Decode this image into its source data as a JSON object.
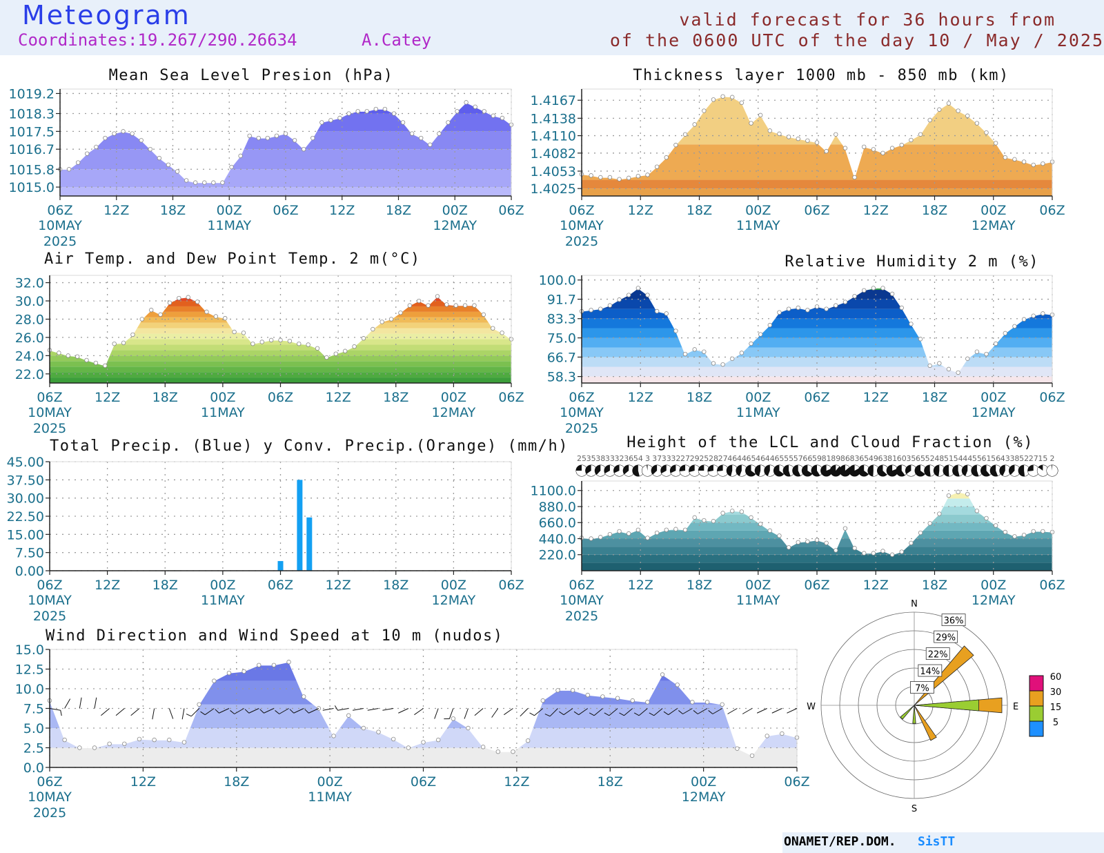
{
  "header": {
    "title": "Meteogram",
    "coordinates": "Coordinates:19.267/290.26634",
    "station": "A.Catey",
    "valid_line1": "valid forecast for 36 hours from",
    "valid_line2": "of the 0600 UTC of the day 10 / May / 2025"
  },
  "footer": {
    "org": "ONAMET/REP.DOM.",
    "brand": "SisTT"
  },
  "time_axis": {
    "ticks": [
      "06Z",
      "12Z",
      "18Z",
      "00Z",
      "06Z",
      "12Z",
      "18Z",
      "00Z",
      "06Z"
    ],
    "dates": [
      {
        "tick": 0,
        "label": "10MAY"
      },
      {
        "tick": 3,
        "label": "11MAY"
      },
      {
        "tick": 7,
        "label": "12MAY"
      }
    ],
    "year": "2025"
  },
  "chart_data": [
    {
      "id": "mslp",
      "type": "area",
      "title": "Mean Sea Level Presion (hPa)",
      "yticks": [
        "1019.2",
        "1018.3",
        "1017.5",
        "1016.7",
        "1015.8",
        "1015.0"
      ],
      "ylim": [
        1014.6,
        1019.4
      ],
      "hours": [
        0,
        48
      ],
      "bands": [
        1015.0,
        1015.8,
        1016.7,
        1017.5,
        1018.3
      ],
      "colors": [
        "#b9b9fb",
        "#a7a7f8",
        "#9797f5",
        "#8888f3",
        "#7272f0",
        "#5e5eec"
      ],
      "values": [
        1015.8,
        1015.8,
        1016.1,
        1016.5,
        1016.8,
        1017.2,
        1017.4,
        1017.5,
        1017.4,
        1017.1,
        1016.7,
        1016.3,
        1016.0,
        1015.7,
        1015.3,
        1015.2,
        1015.2,
        1015.2,
        1015.2,
        1015.9,
        1016.4,
        1017.3,
        1017.2,
        1017.2,
        1017.3,
        1017.4,
        1017.1,
        1016.7,
        1017.2,
        1017.9,
        1018.0,
        1018.1,
        1018.3,
        1018.4,
        1018.4,
        1018.5,
        1018.5,
        1018.3,
        1017.9,
        1017.4,
        1017.2,
        1016.9,
        1017.4,
        1017.9,
        1018.4,
        1018.8,
        1018.6,
        1018.4,
        1018.2,
        1018.1,
        1017.8
      ]
    },
    {
      "id": "thickness",
      "type": "area",
      "title": "Thickness layer 1000 mb - 850 mb (km)",
      "yticks": [
        "1.4167",
        "1.4138",
        "1.4110",
        "1.4082",
        "1.4053",
        "1.4025"
      ],
      "ylim": [
        1.4013,
        1.4185
      ],
      "hours": [
        0,
        48
      ],
      "bands": [
        1.4025,
        1.4039,
        1.4096
      ],
      "colors": [
        "#e8a048",
        "#e5883c",
        "#eeaa52",
        "#f2cf82"
      ],
      "values": [
        1.4048,
        1.4046,
        1.4043,
        1.4043,
        1.404,
        1.4042,
        1.4045,
        1.4047,
        1.406,
        1.4075,
        1.4095,
        1.4112,
        1.4128,
        1.415,
        1.4168,
        1.4173,
        1.4172,
        1.4163,
        1.413,
        1.4143,
        1.4118,
        1.4113,
        1.4108,
        1.4105,
        1.4102,
        1.4099,
        1.4085,
        1.4112,
        1.409,
        1.4043,
        1.4092,
        1.4088,
        1.4082,
        1.409,
        1.4095,
        1.4103,
        1.4112,
        1.4135,
        1.4152,
        1.4162,
        1.415,
        1.4142,
        1.413,
        1.4115,
        1.4098,
        1.4075,
        1.4072,
        1.4068,
        1.4063,
        1.4065,
        1.4068
      ]
    },
    {
      "id": "temp",
      "type": "area",
      "title": "Air Temp. and Dew Point Temp. 2 m(°C)",
      "yticks": [
        "32.0",
        "30.0",
        "28.0",
        "26.0",
        "24.0",
        "22.0"
      ],
      "ylim": [
        21.0,
        32.8
      ],
      "hours": [
        0,
        48
      ],
      "bands": [
        21.6,
        22.2,
        22.8,
        23.4,
        24.0,
        24.6,
        25.2,
        25.8,
        26.4,
        27.0,
        27.6,
        28.2,
        28.8,
        29.4,
        30.0
      ],
      "colors": [
        "#3c9e3a",
        "#4faa40",
        "#64b548",
        "#7bc050",
        "#93ca5a",
        "#abd466",
        "#c2dd76",
        "#d8e68a",
        "#eaeea4",
        "#f3e6a0",
        "#f2d27a",
        "#f0bb58",
        "#ee9f3c",
        "#e8802a",
        "#e2601e",
        "#e04828"
      ],
      "values": [
        24.6,
        24.3,
        24.0,
        23.9,
        23.5,
        23.2,
        22.9,
        25.3,
        25.4,
        26.3,
        28.0,
        29.0,
        28.5,
        29.8,
        30.3,
        30.4,
        29.9,
        28.8,
        28.3,
        28.1,
        26.6,
        26.5,
        25.3,
        25.5,
        25.7,
        25.7,
        25.6,
        25.3,
        25.2,
        24.8,
        23.8,
        24.2,
        24.5,
        25.0,
        25.9,
        26.9,
        27.7,
        28.0,
        28.7,
        29.5,
        30.0,
        29.5,
        30.5,
        29.6,
        29.5,
        29.5,
        29.5,
        28.5,
        27.0,
        26.5,
        25.8
      ]
    },
    {
      "id": "rh",
      "type": "area",
      "title": "Relative Humidity 2 m (%)",
      "yticks": [
        "100.0",
        "91.7",
        "83.3",
        "75.0",
        "66.7",
        "58.3"
      ],
      "ylim": [
        55.5,
        102.0
      ],
      "hours": [
        0,
        48
      ],
      "bands": [
        58.3,
        62.5,
        66.7,
        70.8,
        75.0,
        79.2,
        83.3,
        87.5,
        91.7,
        95.8
      ],
      "colors": [
        "#f6e6ea",
        "#e0e6f6",
        "#bcdcf6",
        "#88c8f6",
        "#52aef2",
        "#2c96ea",
        "#1478dc",
        "#0c5ec8",
        "#0a48ac",
        "#0a3890",
        "#1a9a26"
      ],
      "values": [
        86.5,
        87.0,
        87.5,
        89.0,
        91.5,
        93.5,
        96.5,
        93.5,
        86.5,
        85.5,
        78.0,
        68.0,
        70.0,
        69.0,
        64.0,
        63.5,
        66.0,
        68.5,
        72.5,
        76.5,
        80.5,
        86.0,
        87.5,
        88.0,
        87.0,
        88.5,
        87.5,
        89.0,
        90.5,
        93.0,
        95.5,
        96.5,
        96.5,
        94.0,
        88.0,
        81.0,
        74.5,
        63.0,
        64.0,
        61.5,
        60.0,
        66.0,
        69.0,
        68.0,
        72.5,
        77.0,
        80.0,
        83.0,
        84.5,
        85.5,
        85.0
      ]
    },
    {
      "id": "precip",
      "type": "bar",
      "title": "Total Precip. (Blue) y Conv. Precip.(Orange) (mm/h)",
      "yticks": [
        "45.00",
        "37.50",
        "30.00",
        "22.50",
        "15.00",
        "7.50",
        "0.00"
      ],
      "ylim": [
        0,
        45
      ],
      "hours": [
        0,
        48
      ],
      "bars": [
        {
          "hour": 24,
          "value": 4.0
        },
        {
          "hour": 26,
          "value": 37.5
        },
        {
          "hour": 27,
          "value": 22.0
        }
      ]
    },
    {
      "id": "lcl",
      "type": "area",
      "title": "Height of the LCL and Cloud Fraction (%)",
      "yticks": [
        "1100.0",
        "880.0",
        "660.0",
        "440.0",
        "220.0"
      ],
      "ylim": [
        0,
        1230
      ],
      "hours": [
        0,
        48
      ],
      "bands": [
        110,
        220,
        330,
        440,
        550,
        660,
        770,
        880,
        990
      ],
      "colors": [
        "#1e6070",
        "#2a7080",
        "#3a8090",
        "#4d90a0",
        "#5ea6b2",
        "#72b8c2",
        "#8ccace",
        "#a4dade",
        "#c4ecec",
        "#f6f0b2"
      ],
      "values": [
        450,
        440,
        460,
        500,
        540,
        510,
        560,
        450,
        520,
        560,
        570,
        560,
        730,
        690,
        680,
        790,
        820,
        810,
        730,
        640,
        550,
        480,
        320,
        390,
        400,
        420,
        380,
        280,
        580,
        310,
        240,
        240,
        270,
        220,
        260,
        380,
        520,
        650,
        780,
        1030,
        1080,
        1050,
        820,
        720,
        620,
        530,
        470,
        490,
        540,
        540,
        530
      ],
      "cloud_fraction": [
        "25",
        "35",
        "38",
        "33",
        "32",
        "36",
        "54",
        "3",
        "37",
        "33",
        "32",
        "27",
        "29",
        "25",
        "28",
        "27",
        "46",
        "44",
        "65",
        "46",
        "44",
        "65",
        "55",
        "57",
        "66",
        "59",
        "81",
        "89",
        "86",
        "83",
        "65",
        "49",
        "63",
        "81",
        "60",
        "35",
        "65",
        "52",
        "48",
        "51",
        "54",
        "44",
        "55",
        "61",
        "56",
        "43",
        "38",
        "52",
        "27",
        "15",
        "2"
      ]
    },
    {
      "id": "wind",
      "type": "area",
      "title": "Wind Direction and Wind Speed at 10 m (nudos)",
      "yticks": [
        "15.0",
        "12.5",
        "10.0",
        "7.5",
        "5.0",
        "2.5",
        "0.0"
      ],
      "ylim": [
        0,
        15
      ],
      "hours": [
        0,
        48
      ],
      "bands": [
        2.5,
        5.0,
        8.0,
        11.0
      ],
      "colors": [
        "#ececec",
        "#d0d8f8",
        "#aab8f4",
        "#8090ec",
        "#6a78e6"
      ],
      "values": [
        8.5,
        3.5,
        2.5,
        2.5,
        3.0,
        3.0,
        3.6,
        3.5,
        3.5,
        3.2,
        8.0,
        11.0,
        12.0,
        12.2,
        13.0,
        13.0,
        13.4,
        9.0,
        7.5,
        4.0,
        6.6,
        5.0,
        4.5,
        3.6,
        2.5,
        3.2,
        3.5,
        6.2,
        5.0,
        2.6,
        2.0,
        2.0,
        3.4,
        8.5,
        9.8,
        9.8,
        9.2,
        9.0,
        8.8,
        8.5,
        8.3,
        11.8,
        10.5,
        8.3,
        8.3,
        8.0,
        2.4,
        1.5,
        4.0,
        4.3,
        3.8
      ],
      "dirs_deg": [
        100,
        30,
        10,
        10,
        230,
        230,
        230,
        190,
        160,
        190,
        225,
        235,
        245,
        240,
        245,
        245,
        240,
        245,
        245,
        260,
        260,
        260,
        260,
        260,
        245,
        235,
        200,
        200,
        200,
        230,
        215,
        235,
        225,
        230,
        225,
        235,
        235,
        230,
        230,
        230,
        230,
        230,
        235,
        240,
        240,
        240,
        240,
        240,
        245,
        245,
        245
      ]
    },
    {
      "id": "wind_rose",
      "type": "polar",
      "compass": [
        "N",
        "E",
        "S",
        "W"
      ],
      "rings": [
        "7%",
        "14%",
        "22%",
        "29%",
        "36%"
      ],
      "speed_legend": [
        "5",
        "15",
        "30",
        "60"
      ],
      "speed_colors": [
        "#1e90ff",
        "#9acd32",
        "#e8a020",
        "#e0107a"
      ],
      "petals": [
        {
          "dir_deg": 45,
          "percent": 30,
          "color": "#e8a020"
        },
        {
          "dir_deg": 90,
          "percent": 34,
          "color": "#e8a020"
        },
        {
          "dir_deg": 90,
          "percent": 25,
          "color": "#9acd32"
        },
        {
          "dir_deg": 150,
          "percent": 15,
          "color": "#e8a020"
        },
        {
          "dir_deg": 180,
          "percent": 7,
          "color": "#9acd32"
        },
        {
          "dir_deg": 225,
          "percent": 7,
          "color": "#9acd32"
        }
      ]
    }
  ]
}
